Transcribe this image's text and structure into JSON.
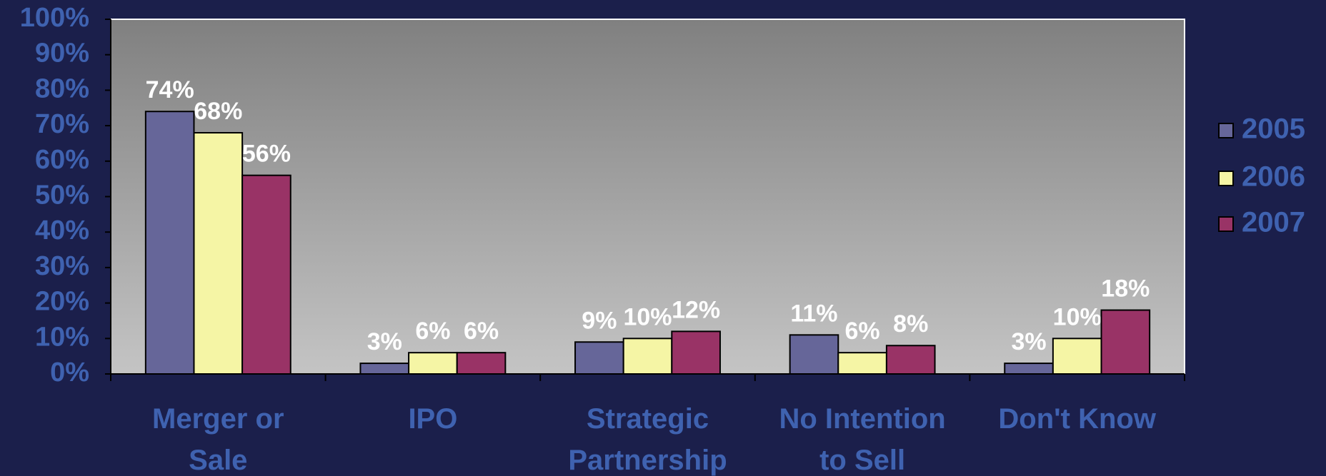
{
  "chart_data": {
    "type": "bar",
    "categories": [
      "Merger or Sale",
      "IPO",
      "Strategic Partnership",
      "No Intention to Sell",
      "Don't Know"
    ],
    "series": [
      {
        "name": "2005",
        "color": "#666699",
        "values": [
          74,
          3,
          9,
          11,
          3
        ],
        "value_labels": [
          "74%",
          "3%",
          "9%",
          "11%",
          "3%"
        ]
      },
      {
        "name": "2006",
        "color": "#f5f5a5",
        "values": [
          68,
          6,
          10,
          6,
          10
        ],
        "value_labels": [
          "68%",
          "6%",
          "10%",
          "6%",
          "10%"
        ]
      },
      {
        "name": "2007",
        "color": "#993366",
        "values": [
          56,
          6,
          12,
          8,
          18
        ],
        "value_labels": [
          "56%",
          "6%",
          "12%",
          "8%",
          "18%"
        ]
      }
    ],
    "ylim": [
      0,
      100
    ],
    "yticks": [
      {
        "value": 0,
        "label": "0%"
      },
      {
        "value": 10,
        "label": "10%"
      },
      {
        "value": 20,
        "label": "20%"
      },
      {
        "value": 30,
        "label": "30%"
      },
      {
        "value": 40,
        "label": "40%"
      },
      {
        "value": 50,
        "label": "50%"
      },
      {
        "value": 60,
        "label": "60%"
      },
      {
        "value": 70,
        "label": "70%"
      },
      {
        "value": 80,
        "label": "80%"
      },
      {
        "value": 90,
        "label": "90%"
      },
      {
        "value": 100,
        "label": "100%"
      }
    ],
    "legend": "right"
  }
}
